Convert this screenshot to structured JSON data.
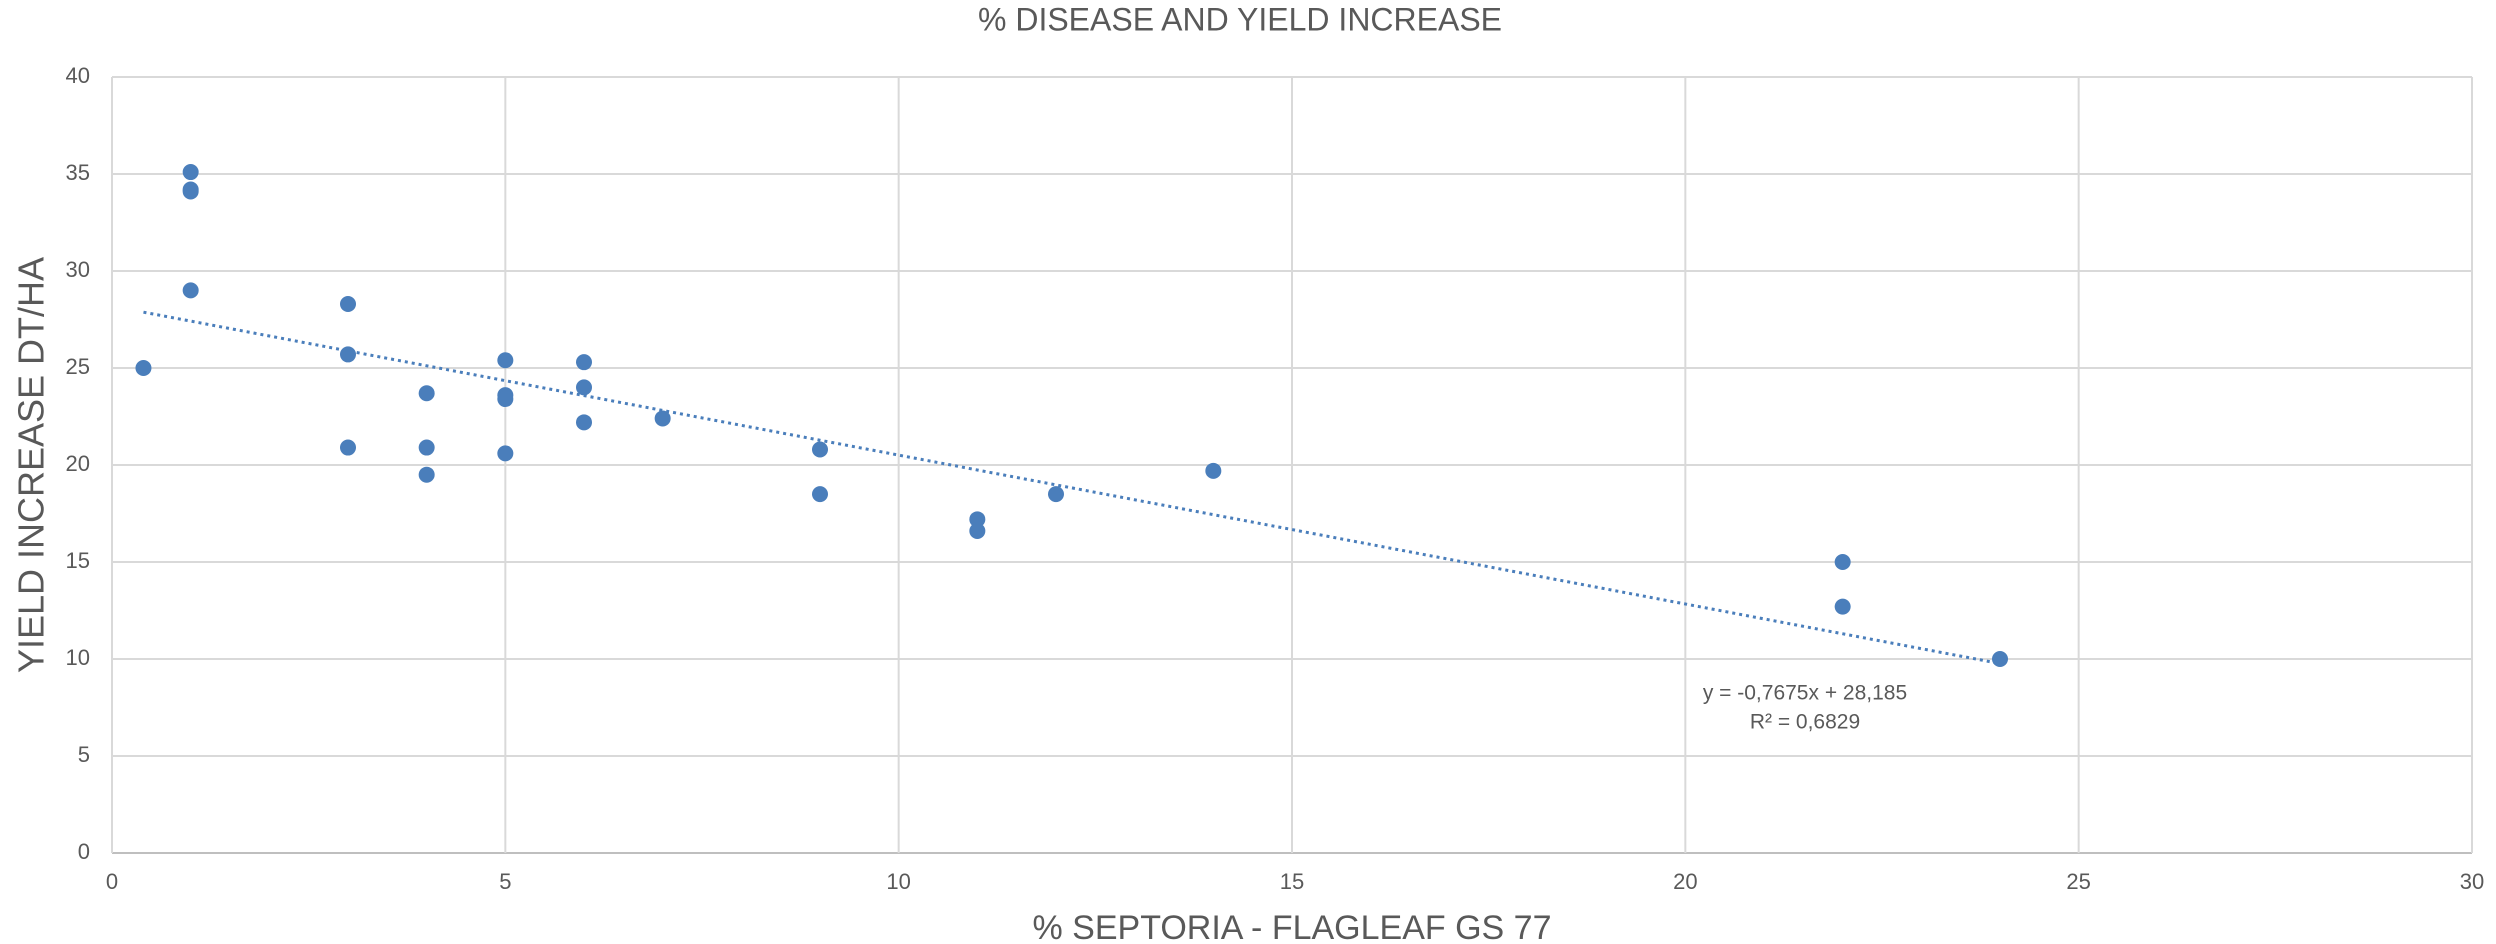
{
  "chart_data": {
    "type": "scatter",
    "title": "% DISEASE AND YIELD  INCREASE",
    "x_label": "% SEPTORIA - FLAGLEAF GS 77",
    "y_label": "YIELD INCREASE DT/HA",
    "color": "#4a7ebb",
    "grid": true,
    "xlim": [
      0,
      30
    ],
    "xticks": [
      0,
      5,
      10,
      15,
      20,
      25,
      30
    ],
    "ylim": [
      0,
      40
    ],
    "yticks": [
      0,
      5,
      10,
      15,
      20,
      25,
      30,
      35,
      40
    ],
    "series": [
      {
        "color": "#4a7ebb",
        "x": [
          0.4,
          1,
          1,
          1,
          1,
          3,
          3,
          3,
          4,
          4,
          4,
          5,
          5,
          5,
          5,
          6,
          6,
          6,
          7,
          9,
          9,
          11,
          11,
          12,
          14,
          22,
          22,
          24
        ],
        "values": [
          25.0,
          35.1,
          34.2,
          34.1,
          29.0,
          28.3,
          25.7,
          20.9,
          23.7,
          20.9,
          19.5,
          25.4,
          23.6,
          23.4,
          20.6,
          25.3,
          24.0,
          22.2,
          22.4,
          20.8,
          18.5,
          17.2,
          16.6,
          18.5,
          19.7,
          15.0,
          12.7,
          10.0
        ]
      }
    ],
    "trendline": {
      "slope": -0.7675,
      "intercept": 28.185,
      "equation": "y = -0,7675x + 28,185",
      "r2": "R² = 0,6829"
    }
  }
}
